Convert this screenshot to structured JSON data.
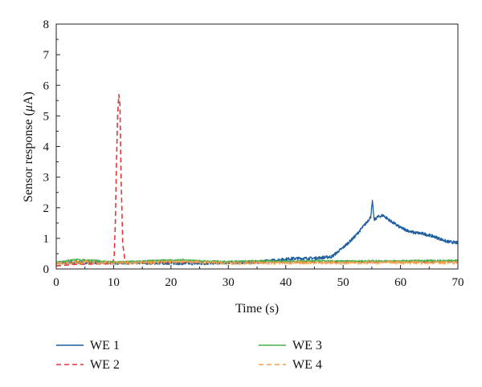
{
  "chart_data": {
    "type": "line",
    "title": "",
    "xlabel": "Time (s)",
    "ylabel_prefix": "Sensor response (",
    "ylabel_unit": "μ",
    "ylabel_suffix": "A)",
    "xlim": [
      0,
      70
    ],
    "ylim": [
      0,
      8
    ],
    "x_ticks": [
      0,
      10,
      20,
      30,
      40,
      50,
      60,
      70
    ],
    "y_ticks": [
      0,
      1,
      2,
      3,
      4,
      5,
      6,
      7,
      8
    ],
    "grid": false,
    "legend_position": "bottom",
    "series": [
      {
        "name": "WE 1",
        "color": "#1f5f9e",
        "dash": "solid",
        "noise": 0.05,
        "points": [
          [
            0,
            0.2
          ],
          [
            5,
            0.22
          ],
          [
            10,
            0.2
          ],
          [
            15,
            0.2
          ],
          [
            20,
            0.19
          ],
          [
            25,
            0.18
          ],
          [
            30,
            0.21
          ],
          [
            35,
            0.22
          ],
          [
            38,
            0.28
          ],
          [
            41,
            0.34
          ],
          [
            45,
            0.35
          ],
          [
            48,
            0.4
          ],
          [
            50,
            0.7
          ],
          [
            52,
            1.05
          ],
          [
            54,
            1.5
          ],
          [
            54.8,
            1.7
          ],
          [
            55.1,
            2.2
          ],
          [
            55.4,
            1.6
          ],
          [
            56,
            1.7
          ],
          [
            57,
            1.75
          ],
          [
            58,
            1.6
          ],
          [
            60,
            1.35
          ],
          [
            62,
            1.2
          ],
          [
            64,
            1.15
          ],
          [
            66,
            1.05
          ],
          [
            68,
            0.9
          ],
          [
            70,
            0.85
          ]
        ]
      },
      {
        "name": "WE 2",
        "color": "#e0363b",
        "dash": "6,4",
        "noise": 0,
        "points": [
          [
            0,
            0.1
          ],
          [
            3,
            0.15
          ],
          [
            6,
            0.16
          ],
          [
            9.8,
            0.17
          ],
          [
            10.1,
            0.4
          ],
          [
            10.3,
            1.5
          ],
          [
            10.5,
            3.5
          ],
          [
            10.7,
            5.0
          ],
          [
            10.9,
            5.7
          ],
          [
            11.1,
            5.4
          ],
          [
            11.3,
            3.0
          ],
          [
            11.6,
            0.8
          ],
          [
            12,
            0.25
          ],
          [
            15,
            0.22
          ],
          [
            20,
            0.22
          ],
          [
            25,
            0.22
          ],
          [
            30,
            0.22
          ],
          [
            35,
            0.22
          ],
          [
            40,
            0.22
          ],
          [
            45,
            0.22
          ],
          [
            50,
            0.22
          ],
          [
            55,
            0.22
          ],
          [
            60,
            0.22
          ],
          [
            65,
            0.22
          ],
          [
            70,
            0.22
          ]
        ]
      },
      {
        "name": "WE 3",
        "color": "#4caf50",
        "dash": "solid",
        "noise": 0.03,
        "points": [
          [
            0,
            0.22
          ],
          [
            3,
            0.3
          ],
          [
            6,
            0.28
          ],
          [
            10,
            0.22
          ],
          [
            14,
            0.24
          ],
          [
            18,
            0.28
          ],
          [
            22,
            0.29
          ],
          [
            26,
            0.25
          ],
          [
            30,
            0.24
          ],
          [
            35,
            0.26
          ],
          [
            40,
            0.25
          ],
          [
            45,
            0.26
          ],
          [
            50,
            0.25
          ],
          [
            55,
            0.26
          ],
          [
            60,
            0.26
          ],
          [
            65,
            0.27
          ],
          [
            70,
            0.27
          ]
        ]
      },
      {
        "name": "WE 4",
        "color": "#f0a04a",
        "dash": "6,4",
        "noise": 0.05,
        "points": [
          [
            0,
            0.18
          ],
          [
            5,
            0.22
          ],
          [
            10,
            0.2
          ],
          [
            15,
            0.2
          ],
          [
            20,
            0.24
          ],
          [
            25,
            0.22
          ],
          [
            28,
            0.2
          ],
          [
            30,
            0.18
          ],
          [
            35,
            0.2
          ],
          [
            40,
            0.2
          ],
          [
            45,
            0.21
          ],
          [
            50,
            0.2
          ],
          [
            55,
            0.21
          ],
          [
            60,
            0.21
          ],
          [
            65,
            0.21
          ],
          [
            70,
            0.21
          ]
        ]
      }
    ]
  }
}
